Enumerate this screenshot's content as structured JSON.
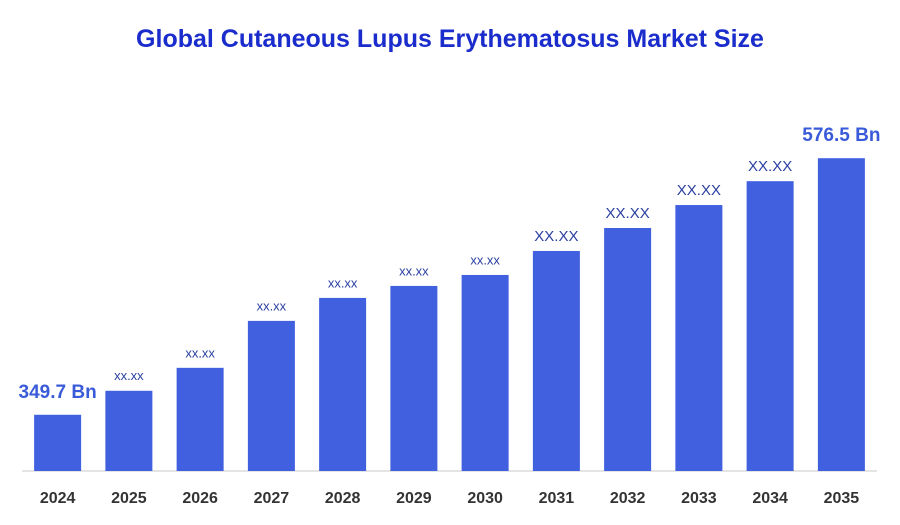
{
  "chart_data": {
    "type": "bar",
    "title": "Global Cutaneous Lupus Erythematosus Market Size",
    "categories": [
      "2024",
      "2025",
      "2026",
      "2027",
      "2028",
      "2029",
      "2030",
      "2031",
      "2032",
      "2033",
      "2034",
      "2035"
    ],
    "values": [
      349.7,
      370.9,
      391.2,
      432.7,
      453.0,
      463.6,
      473.3,
      494.5,
      514.8,
      535.1,
      556.2,
      576.5
    ],
    "value_labels": [
      "349.7 Bn",
      "xx.xx",
      "xx.xx",
      "xx.xx",
      "xx.xx",
      "xx.xx",
      "xx.xx",
      "XX.XX",
      "XX.XX",
      "XX.XX",
      "XX.XX",
      "576.5 Bn"
    ],
    "color": "#4060e0",
    "ylim": [
      300,
      620
    ]
  }
}
